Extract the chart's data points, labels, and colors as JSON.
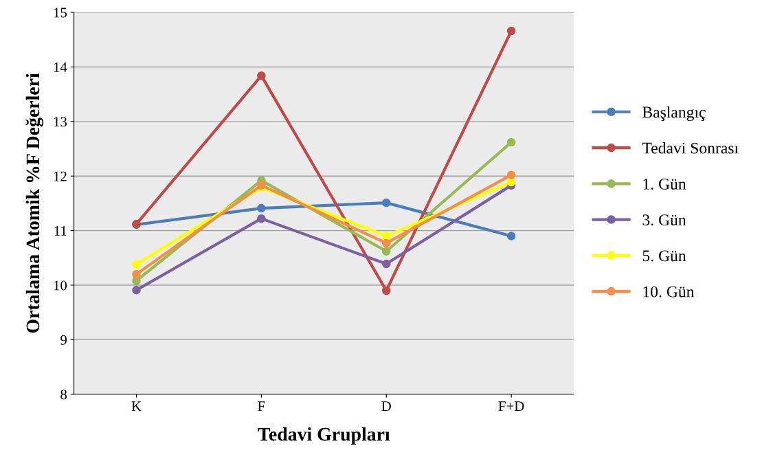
{
  "chart_data": {
    "type": "line",
    "xlabel": "Tedavi Grupları",
    "ylabel": "Ortalama Atomik %F Değerleri",
    "categories": [
      "K",
      "F",
      "D",
      "F+D"
    ],
    "series": [
      {
        "name": "Başlangıç",
        "color": "#4a7ebb",
        "values": [
          11.11,
          11.41,
          11.51,
          10.9
        ]
      },
      {
        "name": "Tedavi Sonrası",
        "color": "#be4b48",
        "values": [
          11.12,
          13.84,
          9.9,
          14.66
        ]
      },
      {
        "name": "1. Gün",
        "color": "#98b954",
        "values": [
          10.08,
          11.92,
          10.62,
          12.62
        ]
      },
      {
        "name": "3. Gün",
        "color": "#7d60a0",
        "values": [
          9.91,
          11.22,
          10.39,
          11.83
        ]
      },
      {
        "name": "5. Gün",
        "color": "#ffff00",
        "values": [
          10.38,
          11.79,
          10.9,
          11.89
        ]
      },
      {
        "name": "10. Gün",
        "color": "#f38f46",
        "values": [
          10.2,
          11.83,
          10.77,
          12.02
        ]
      }
    ],
    "ylim": [
      8,
      15
    ],
    "yticks": [
      8,
      9,
      10,
      11,
      12,
      13,
      14,
      15
    ],
    "grid": "y",
    "legend": "right",
    "marker": "circle",
    "line_style": "solid"
  }
}
